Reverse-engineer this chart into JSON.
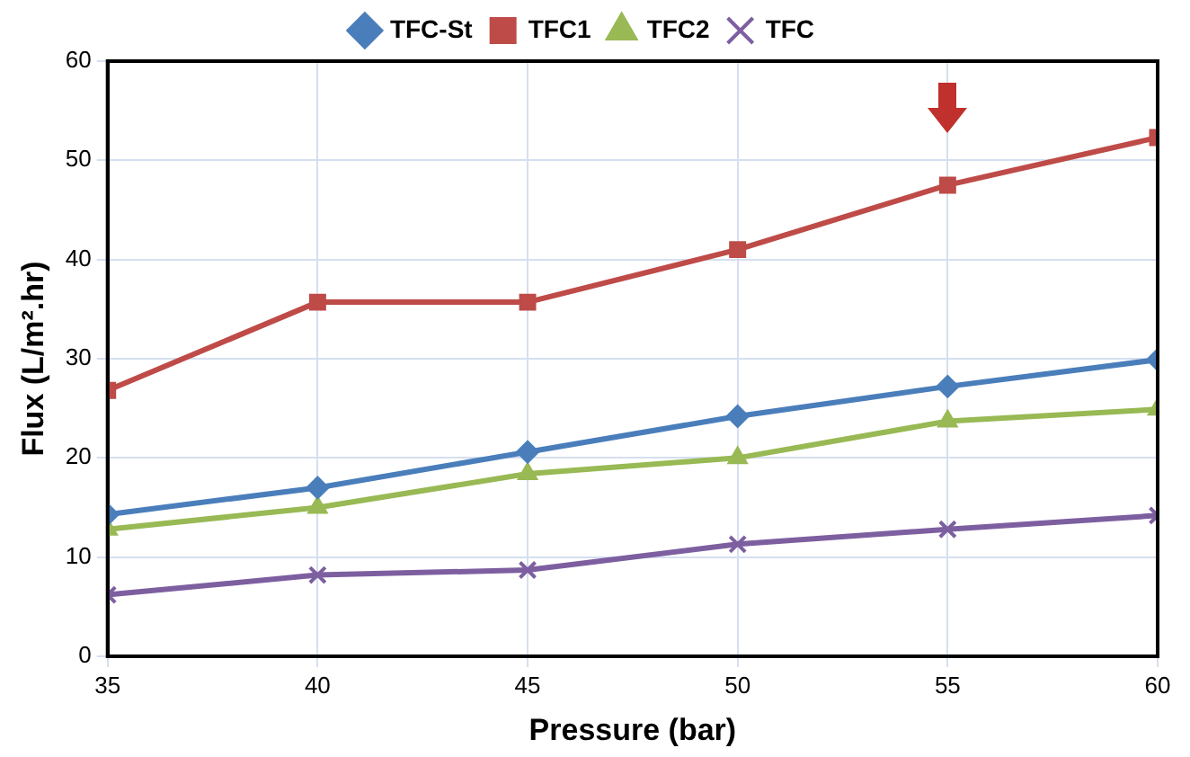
{
  "chart_data": {
    "type": "line",
    "xlabel": "Pressure (bar)",
    "ylabel": "Flux (L/m².hr)",
    "x": [
      35,
      40,
      45,
      50,
      55,
      60
    ],
    "xlim": [
      35,
      60
    ],
    "xticks": [
      35,
      40,
      45,
      50,
      55,
      60
    ],
    "ylim": [
      0,
      60
    ],
    "yticks": [
      0,
      10,
      20,
      30,
      40,
      50,
      60
    ],
    "grid": true,
    "legend": "top",
    "line_style": "solid",
    "series": [
      {
        "name": "TFC-St",
        "color": "#4a7ebb",
        "marker": "diamond",
        "values": [
          14.3,
          17,
          20.6,
          24.2,
          27.2,
          29.9
        ]
      },
      {
        "name": "TFC1",
        "color": "#be4b48",
        "marker": "square",
        "values": [
          26.8,
          35.7,
          35.7,
          41,
          47.5,
          52.3
        ]
      },
      {
        "name": "TFC2",
        "color": "#98b954",
        "marker": "triangle",
        "values": [
          12.8,
          15,
          18.4,
          20,
          23.7,
          24.9
        ]
      },
      {
        "name": "TFC",
        "color": "#7d5fa0",
        "marker": "cross",
        "values": [
          6.2,
          8.2,
          8.7,
          11.3,
          12.8,
          14.2
        ]
      }
    ]
  }
}
